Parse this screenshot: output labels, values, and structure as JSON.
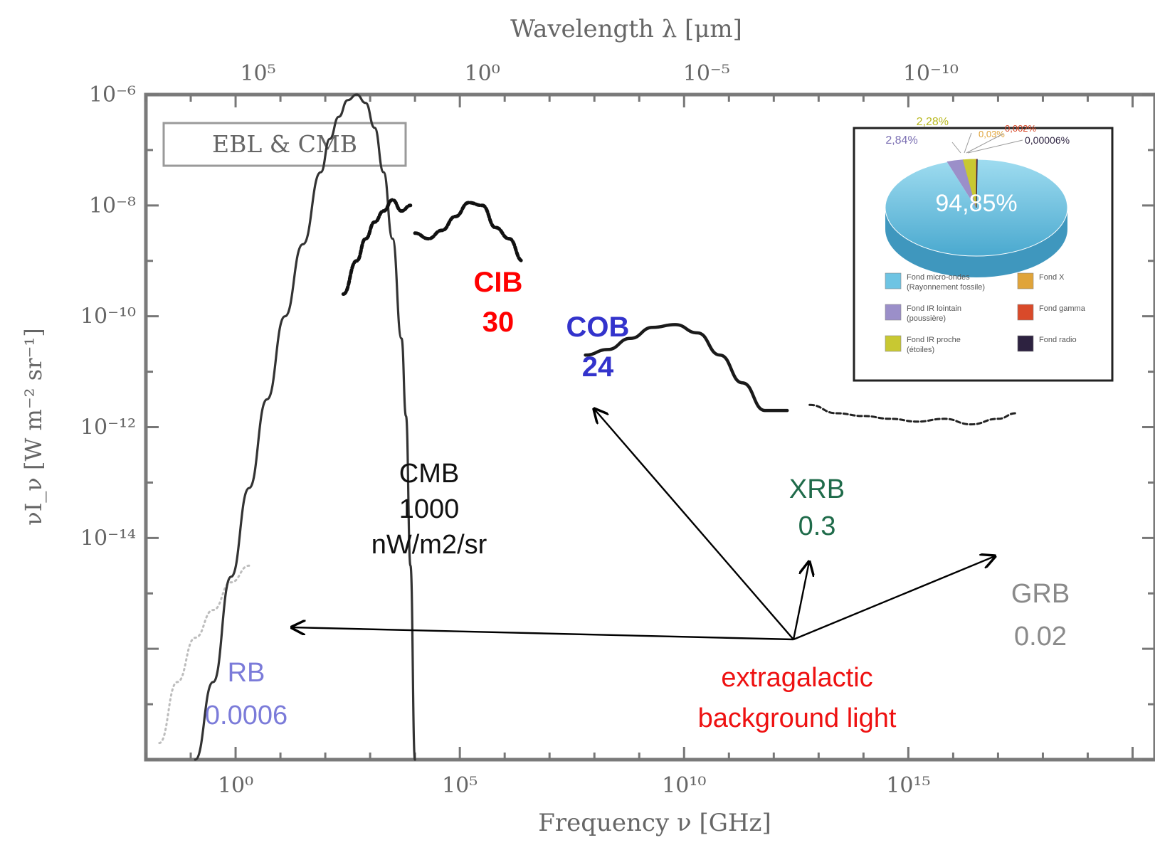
{
  "chart_data": {
    "type": "line",
    "xlabel_bottom": "Frequency ν [GHz]",
    "xlabel_top": "Wavelength λ [μm]",
    "ylabel": "νI_ν [W m⁻² sr⁻¹]",
    "x_scale": "log",
    "y_scale": "log",
    "xlim_log10": [
      -2.0,
      20.5
    ],
    "ylim_log10": [
      -18.0,
      -6.0
    ],
    "bottom_ticks": [
      {
        "label": "10⁰",
        "log10": 0
      },
      {
        "label": "10⁵",
        "log10": 5
      },
      {
        "label": "10¹⁰",
        "log10": 10
      },
      {
        "label": "10¹⁵",
        "log10": 15
      }
    ],
    "top_ticks": [
      {
        "label": "10⁵",
        "log10_freq": 0.5
      },
      {
        "label": "10⁰",
        "log10_freq": 5.5
      },
      {
        "label": "10⁻⁵",
        "log10_freq": 10.5
      },
      {
        "label": "10⁻¹⁰",
        "log10_freq": 15.5
      }
    ],
    "left_ticks": [
      {
        "label": "10⁻⁶",
        "log10": -6
      },
      {
        "label": "10⁻⁸",
        "log10": -8
      },
      {
        "label": "10⁻¹⁰",
        "log10": -10
      },
      {
        "label": "10⁻¹²",
        "log10": -12
      },
      {
        "label": "10⁻¹⁴",
        "log10": -14
      }
    ],
    "legend_box": "EBL & CMB",
    "series": [
      {
        "key": "rb",
        "x_log10": [
          -1.7,
          -1.3,
          -0.9,
          -0.5,
          -0.1,
          0.3
        ],
        "y_log10": [
          -17.7,
          -16.6,
          -15.8,
          -15.3,
          -14.8,
          -14.5
        ]
      },
      {
        "key": "cmb",
        "x_log10": [
          -0.9,
          -0.5,
          -0.1,
          0.3,
          0.7,
          1.1,
          1.5,
          1.9,
          2.1,
          2.3,
          2.5,
          2.7,
          2.9,
          3.1,
          3.3,
          3.5,
          3.7,
          3.8,
          3.9,
          4.0
        ],
        "y_log10": [
          -18.0,
          -16.6,
          -14.7,
          -13.1,
          -11.5,
          -10.0,
          -8.7,
          -7.4,
          -6.8,
          -6.4,
          -6.1,
          -6.0,
          -6.15,
          -6.6,
          -7.4,
          -8.6,
          -10.4,
          -11.8,
          -14.5,
          -18.0
        ]
      },
      {
        "key": "cib",
        "x_log10": [
          2.4,
          2.7,
          2.9,
          3.1,
          3.3,
          3.5,
          3.7,
          3.9
        ],
        "y_log10": [
          -9.6,
          -9.0,
          -8.6,
          -8.3,
          -8.1,
          -7.9,
          -8.1,
          -8.0
        ]
      },
      {
        "key": "cob",
        "x_log10": [
          4.0,
          4.3,
          4.6,
          4.9,
          5.2,
          5.5,
          5.8,
          6.1,
          6.4
        ],
        "y_log10": [
          -8.5,
          -8.6,
          -8.45,
          -8.2,
          -7.95,
          -8.0,
          -8.4,
          -8.6,
          -9.0
        ]
      },
      {
        "key": "xrb",
        "x_log10": [
          7.8,
          8.3,
          8.8,
          9.3,
          9.8,
          10.3,
          10.8,
          11.3,
          11.8,
          12.3
        ],
        "y_log10": [
          -10.7,
          -10.6,
          -10.4,
          -10.2,
          -10.15,
          -10.3,
          -10.7,
          -11.2,
          -11.7,
          -11.7
        ]
      },
      {
        "key": "grb",
        "x_log10": [
          12.8,
          13.4,
          14.0,
          14.6,
          15.2,
          15.8,
          16.4,
          17.0,
          17.4
        ],
        "y_log10": [
          -11.6,
          -11.75,
          -11.8,
          -11.85,
          -11.9,
          -11.85,
          -11.95,
          -11.85,
          -11.75
        ]
      }
    ],
    "annotations": [
      {
        "key": "cmb",
        "lines": [
          "CMB",
          "1000",
          "nW/m2/sr"
        ],
        "color": "#111111"
      },
      {
        "key": "cib",
        "lines": [
          "CIB",
          "30"
        ],
        "color": "#ff0000"
      },
      {
        "key": "cob",
        "lines": [
          "COB",
          "24"
        ],
        "color": "#3333cc"
      },
      {
        "key": "xrb",
        "lines": [
          "XRB",
          "0.3"
        ],
        "color": "#1f6b4a"
      },
      {
        "key": "grb",
        "lines": [
          "GRB",
          "0.02"
        ],
        "color": "#8a8a8a"
      },
      {
        "key": "rb",
        "lines": [
          "RB",
          "0.0006"
        ],
        "color": "#7b7bd9"
      },
      {
        "key": "ebl",
        "lines": [
          "extragalactic",
          "background light"
        ],
        "color": "#ee1111"
      }
    ],
    "inset_pie": {
      "slices": [
        {
          "label": "94,85%",
          "value": 94.85,
          "color": "#6ec4e3"
        },
        {
          "label": "2,84%",
          "value": 2.84,
          "color": "#9b8fc9"
        },
        {
          "label": "2,28%",
          "value": 2.28,
          "color": "#c8c832"
        },
        {
          "label": "0,03%",
          "value": 0.03,
          "color": "#e0a43a"
        },
        {
          "label": "0,002%",
          "value": 0.002,
          "color": "#d94a2a"
        },
        {
          "label": "0,00006%",
          "value": 6e-05,
          "color": "#2d2240"
        }
      ],
      "legend": [
        {
          "lines": [
            "Fond micro-ondes",
            "(Rayonnement fossile)"
          ],
          "color": "#6ec4e3"
        },
        {
          "lines": [
            "Fond X"
          ],
          "color": "#e0a43a"
        },
        {
          "lines": [
            "Fond IR lointain",
            "(poussière)"
          ],
          "color": "#9b8fc9"
        },
        {
          "lines": [
            "Fond gamma"
          ],
          "color": "#d94a2a"
        },
        {
          "lines": [
            "Fond IR proche",
            "(étoiles)"
          ],
          "color": "#c8c832"
        },
        {
          "lines": [
            "Fond radio"
          ],
          "color": "#2d2240"
        }
      ]
    }
  }
}
